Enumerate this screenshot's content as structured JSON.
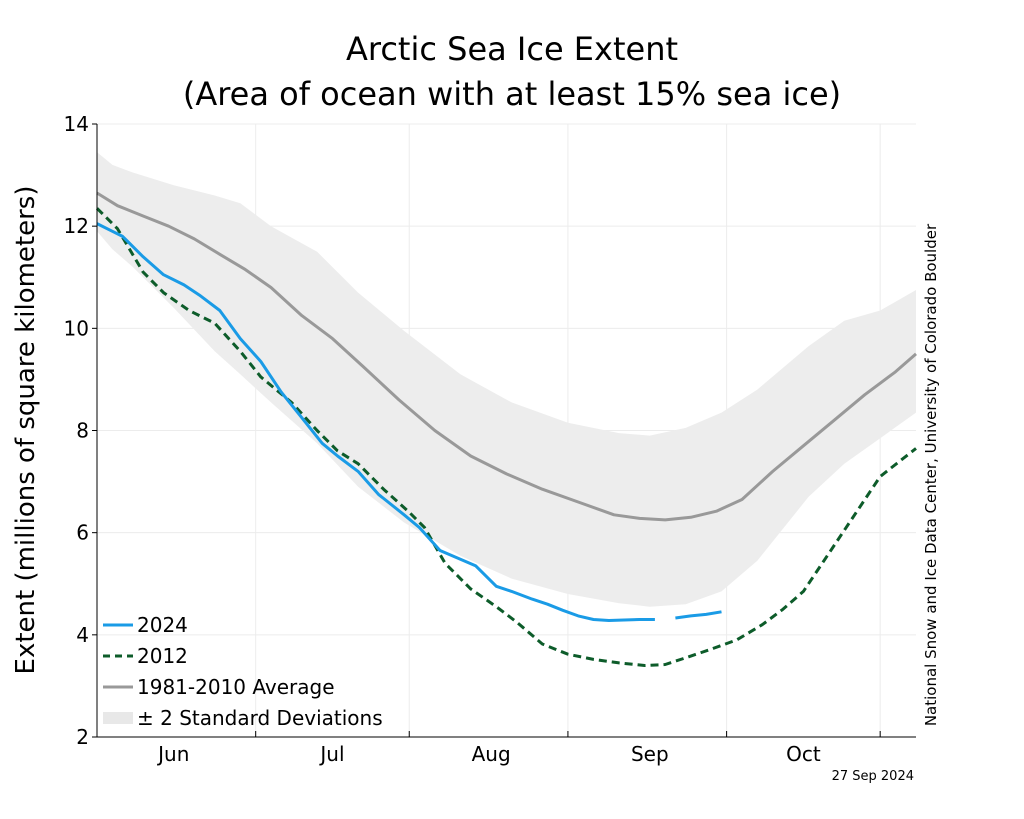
{
  "chart_data": {
    "type": "line",
    "title": [
      "Arctic Sea Ice Extent",
      "(Area of ocean with at least 15% sea ice)"
    ],
    "ylabel": "Extent (millions of square kilometers)",
    "ylim": [
      2,
      14
    ],
    "yticks": [
      2,
      4,
      6,
      8,
      10,
      12,
      14
    ],
    "xlim": [
      "2024-05-15",
      "2024-10-22"
    ],
    "x_month_ticks": [
      "2024-05-15",
      "2024-06-15",
      "2024-07-15",
      "2024-08-15",
      "2024-09-15",
      "2024-10-15"
    ],
    "x_month_labels": [
      {
        "label": "Jun",
        "date": "2024-05-30"
      },
      {
        "label": "Jul",
        "date": "2024-06-30"
      },
      {
        "label": "Aug",
        "date": "2024-07-31"
      },
      {
        "label": "Sep",
        "date": "2024-08-31"
      },
      {
        "label": "Oct",
        "date": "2024-09-30"
      }
    ],
    "grid": true,
    "legend_position": "bottom-left",
    "band": {
      "name": "± 2 Standard Deviations",
      "color": "#ededed",
      "x": [
        "2024-05-15",
        "2024-05-18",
        "2024-05-22",
        "2024-05-30",
        "2024-06-07",
        "2024-06-12",
        "2024-06-18",
        "2024-06-27",
        "2024-07-05",
        "2024-07-14",
        "2024-07-25",
        "2024-08-04",
        "2024-08-15",
        "2024-08-25",
        "2024-08-31",
        "2024-09-07",
        "2024-09-14",
        "2024-09-21",
        "2024-10-01",
        "2024-10-08",
        "2024-10-15",
        "2024-10-22"
      ],
      "upper": [
        13.45,
        13.2,
        13.05,
        12.8,
        12.6,
        12.45,
        12.0,
        11.5,
        10.7,
        9.95,
        9.1,
        8.55,
        8.15,
        7.95,
        7.9,
        8.05,
        8.35,
        8.8,
        9.65,
        10.15,
        10.35,
        10.75
      ],
      "lower": [
        11.9,
        11.55,
        11.2,
        10.4,
        9.55,
        9.1,
        8.55,
        7.75,
        6.9,
        6.2,
        5.55,
        5.1,
        4.8,
        4.62,
        4.55,
        4.6,
        4.85,
        5.45,
        6.7,
        7.35,
        7.85,
        8.35
      ]
    },
    "series": [
      {
        "name": "2024",
        "color": "#1a9be6",
        "dash": "solid",
        "segments": [
          {
            "x": [
              "2024-05-15",
              "2024-05-18",
              "2024-05-20",
              "2024-05-24",
              "2024-05-28",
              "2024-06-01",
              "2024-06-04",
              "2024-06-08",
              "2024-06-12",
              "2024-06-16",
              "2024-06-20",
              "2024-06-24",
              "2024-06-28",
              "2024-07-01",
              "2024-07-05",
              "2024-07-09",
              "2024-07-14",
              "2024-07-17",
              "2024-07-21",
              "2024-07-25",
              "2024-07-28",
              "2024-08-01",
              "2024-08-04",
              "2024-08-08",
              "2024-08-11",
              "2024-08-14",
              "2024-08-17",
              "2024-08-20",
              "2024-08-23",
              "2024-08-26",
              "2024-08-29",
              "2024-09-01"
            ],
            "y": [
              12.05,
              11.9,
              11.8,
              11.4,
              11.05,
              10.85,
              10.65,
              10.35,
              9.8,
              9.35,
              8.75,
              8.25,
              7.75,
              7.5,
              7.2,
              6.75,
              6.35,
              6.1,
              5.65,
              5.48,
              5.35,
              4.95,
              4.85,
              4.7,
              4.6,
              4.48,
              4.37,
              4.3,
              4.28,
              4.29,
              4.3,
              4.3
            ]
          },
          {
            "x": [
              "2024-09-05",
              "2024-09-08",
              "2024-09-11",
              "2024-09-14"
            ],
            "y": [
              4.33,
              4.37,
              4.4,
              4.45
            ]
          }
        ]
      },
      {
        "name": "2012",
        "color": "#0d5c2a",
        "dash": "dashed",
        "x": [
          "2024-05-15",
          "2024-05-19",
          "2024-05-24",
          "2024-05-28",
          "2024-06-02",
          "2024-06-07",
          "2024-06-12",
          "2024-06-16",
          "2024-06-22",
          "2024-06-27",
          "2024-07-01",
          "2024-07-05",
          "2024-07-10",
          "2024-07-15",
          "2024-07-18",
          "2024-07-22",
          "2024-07-27",
          "2024-08-01",
          "2024-08-05",
          "2024-08-10",
          "2024-08-15",
          "2024-08-20",
          "2024-08-25",
          "2024-08-30",
          "2024-09-03",
          "2024-09-07",
          "2024-09-12",
          "2024-09-17",
          "2024-09-22",
          "2024-09-26",
          "2024-09-30",
          "2024-10-04",
          "2024-10-09",
          "2024-10-15",
          "2024-10-22"
        ],
        "y": [
          12.35,
          11.95,
          11.1,
          10.7,
          10.35,
          10.1,
          9.55,
          9.05,
          8.55,
          8.0,
          7.6,
          7.35,
          6.85,
          6.4,
          6.1,
          5.4,
          4.9,
          4.55,
          4.25,
          3.82,
          3.62,
          3.52,
          3.45,
          3.4,
          3.42,
          3.55,
          3.72,
          3.9,
          4.2,
          4.5,
          4.85,
          5.45,
          6.2,
          7.1,
          7.65
        ]
      },
      {
        "name": "1981-2010 Average",
        "color": "#999999",
        "dash": "solid",
        "x": [
          "2024-05-15",
          "2024-05-19",
          "2024-05-24",
          "2024-05-29",
          "2024-06-03",
          "2024-06-08",
          "2024-06-13",
          "2024-06-18",
          "2024-06-24",
          "2024-06-30",
          "2024-07-06",
          "2024-07-13",
          "2024-07-20",
          "2024-07-27",
          "2024-08-03",
          "2024-08-10",
          "2024-08-17",
          "2024-08-24",
          "2024-08-29",
          "2024-09-03",
          "2024-09-08",
          "2024-09-13",
          "2024-09-18",
          "2024-09-24",
          "2024-09-30",
          "2024-10-06",
          "2024-10-12",
          "2024-10-18",
          "2024-10-22"
        ],
        "y": [
          12.65,
          12.4,
          12.2,
          12.0,
          11.75,
          11.45,
          11.15,
          10.8,
          10.25,
          9.8,
          9.25,
          8.6,
          8.0,
          7.5,
          7.15,
          6.85,
          6.6,
          6.35,
          6.28,
          6.25,
          6.3,
          6.42,
          6.65,
          7.2,
          7.7,
          8.2,
          8.7,
          9.15,
          9.5
        ]
      }
    ],
    "credit": "National Snow and Ice Data Center, University of Colorado Boulder",
    "date_stamp": "27 Sep 2024"
  }
}
